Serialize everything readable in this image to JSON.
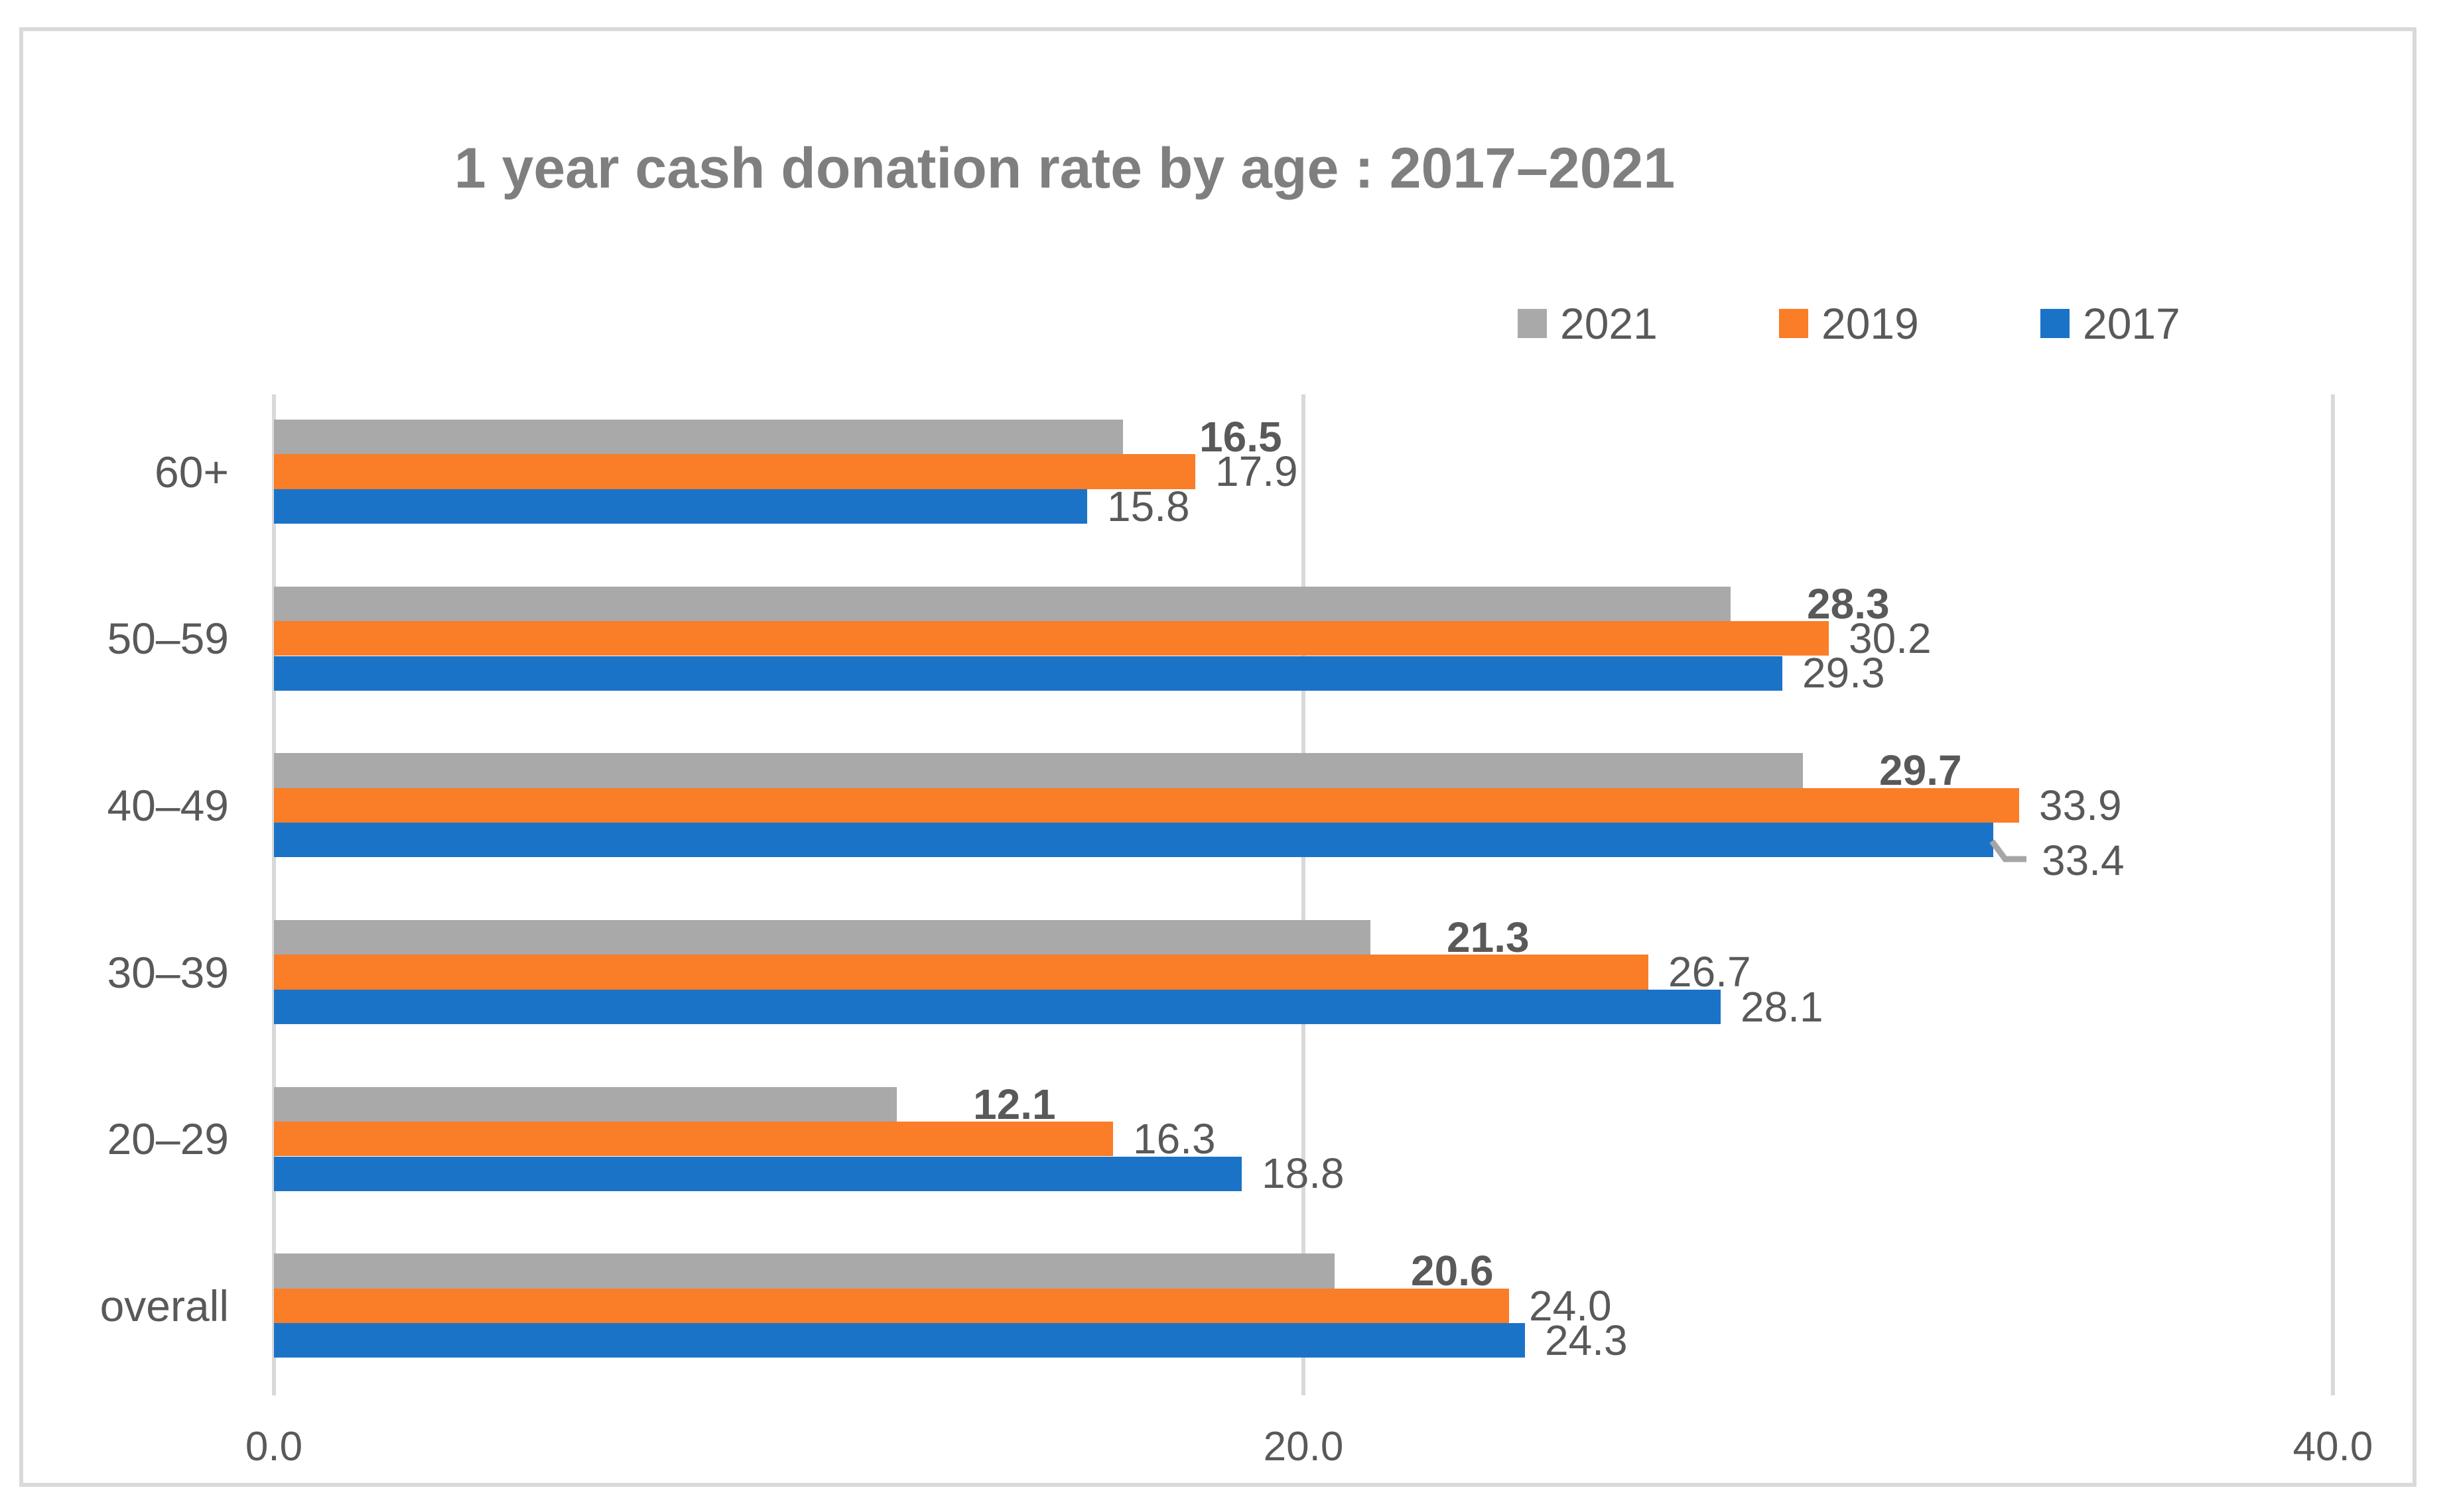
{
  "title": "1 year cash donation rate by age : 2017–2021",
  "legend": [
    {
      "label": "2021",
      "color": "#A9A9A9"
    },
    {
      "label": "2019",
      "color": "#FA7D27"
    },
    {
      "label": "2017",
      "color": "#1B73C7"
    }
  ],
  "chart_data": {
    "type": "bar",
    "orientation": "horizontal",
    "title": "1 year cash donation rate by age : 2017–2021",
    "categories": [
      "60+",
      "50–59",
      "40–49",
      "30–39",
      "20–29",
      "overall"
    ],
    "series": [
      {
        "name": "2021",
        "color": "#A9A9A9",
        "bold_labels": true,
        "values": [
          16.5,
          28.3,
          29.7,
          21.3,
          12.1,
          20.6
        ],
        "labels": [
          "16.5",
          "28.3",
          "29.7",
          "21.3",
          "12.1",
          "20.6"
        ]
      },
      {
        "name": "2019",
        "color": "#FA7D27",
        "bold_labels": false,
        "values": [
          17.9,
          30.2,
          33.9,
          26.7,
          16.3,
          24.0
        ],
        "labels": [
          "17.9",
          "30.2",
          "33.9",
          "26.7",
          "16.3",
          "24.0"
        ]
      },
      {
        "name": "2017",
        "color": "#1B73C7",
        "bold_labels": false,
        "values": [
          15.8,
          29.3,
          33.4,
          28.1,
          18.8,
          24.3
        ],
        "labels": [
          "15.8",
          "29.3",
          "33.4",
          "28.1",
          "18.8",
          "24.3"
        ]
      }
    ],
    "moved_label": {
      "series": "2017",
      "category": "40–49",
      "label": "33.4",
      "has_leader_line": true
    },
    "xlim": [
      0,
      40
    ],
    "x_ticks": [
      {
        "label": "0.0",
        "value": 0
      },
      {
        "label": "20.0",
        "value": 20
      },
      {
        "label": "40.0",
        "value": 40
      }
    ],
    "gridlines": "vertical",
    "legend_position": "top-right",
    "value_labels": "outside-end"
  },
  "colors": {
    "text": "#595959",
    "title_text": "#7F7F7F",
    "grid": "#D9D9D9",
    "frame_border": "#D9D9D9",
    "leader_line": "#A6A6A6",
    "background": "#FFFFFF"
  }
}
